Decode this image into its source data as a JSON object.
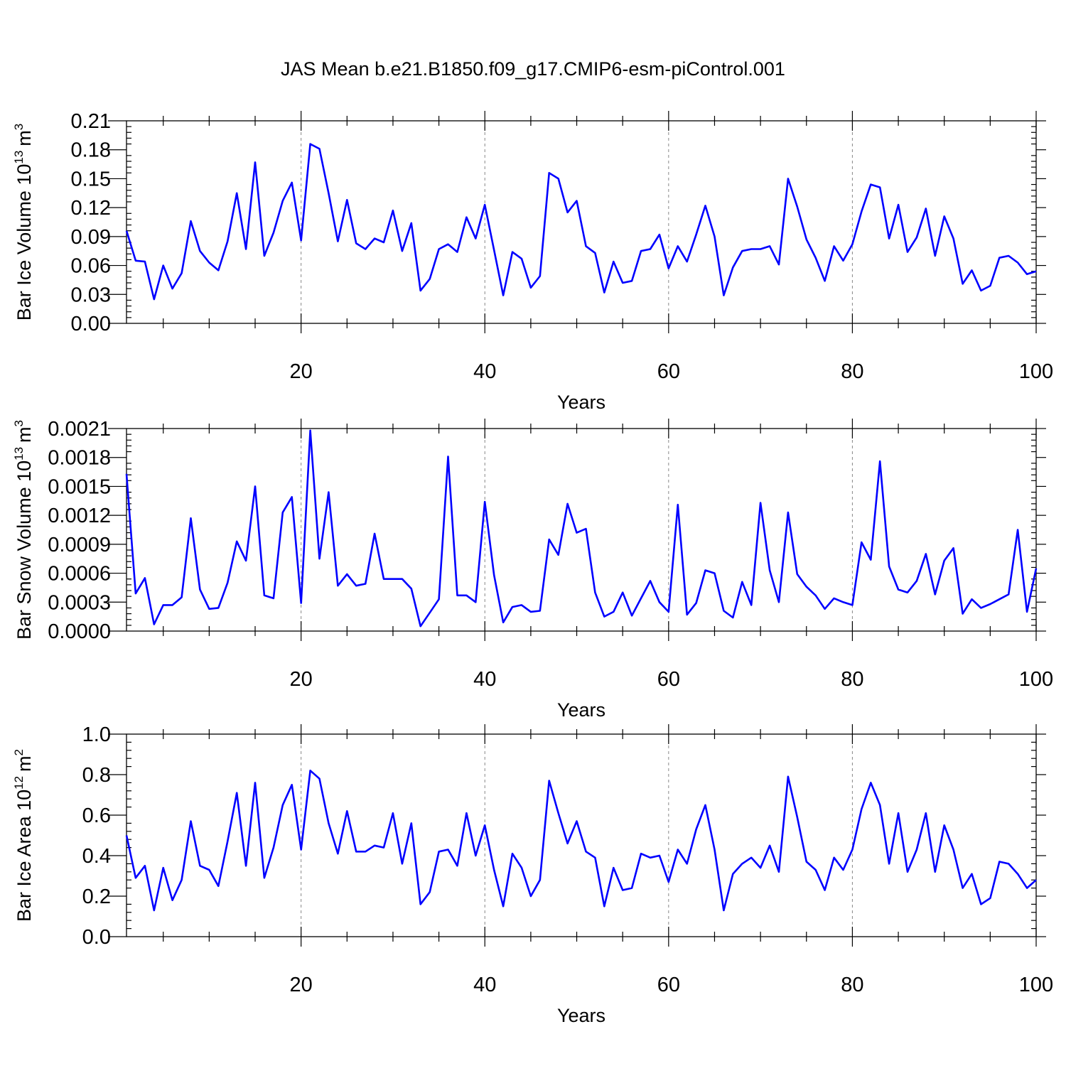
{
  "figure_title": "JAS Mean b.e21.B1850.f09_g17.CMIP6-esm-piControl.001",
  "line_color": "#0000ff",
  "chart_data": [
    {
      "type": "line",
      "xlabel": "Years",
      "ylabel": "Bar Ice Volume 10",
      "ylabel_exponent": "13",
      "ylabel_unit": "m",
      "ylabel_unit_exponent": "3",
      "xlim": [
        1,
        100
      ],
      "ylim": [
        0,
        0.21
      ],
      "x_ticks": [
        20,
        40,
        60,
        80,
        100
      ],
      "y_ticks": [
        "0.00",
        "0.03",
        "0.06",
        "0.09",
        "0.12",
        "0.15",
        "0.18",
        "0.21"
      ],
      "grid": "dashed vertical at x ticks",
      "x": [
        1,
        2,
        3,
        4,
        5,
        6,
        7,
        8,
        9,
        10,
        11,
        12,
        13,
        14,
        15,
        16,
        17,
        18,
        19,
        20,
        21,
        22,
        23,
        24,
        25,
        26,
        27,
        28,
        29,
        30,
        31,
        32,
        33,
        34,
        35,
        36,
        37,
        38,
        39,
        40,
        41,
        42,
        43,
        44,
        45,
        46,
        47,
        48,
        49,
        50,
        51,
        52,
        53,
        54,
        55,
        56,
        57,
        58,
        59,
        60,
        61,
        62,
        63,
        64,
        65,
        66,
        67,
        68,
        69,
        70,
        71,
        72,
        73,
        74,
        75,
        76,
        77,
        78,
        79,
        80,
        81,
        82,
        83,
        84,
        85,
        86,
        87,
        88,
        89,
        90,
        91,
        92,
        93,
        94,
        95,
        96,
        97,
        98,
        99,
        100
      ],
      "values": [
        0.096,
        0.065,
        0.064,
        0.025,
        0.06,
        0.036,
        0.052,
        0.106,
        0.075,
        0.063,
        0.055,
        0.085,
        0.135,
        0.077,
        0.167,
        0.07,
        0.094,
        0.127,
        0.146,
        0.086,
        0.186,
        0.181,
        0.135,
        0.085,
        0.128,
        0.083,
        0.077,
        0.088,
        0.084,
        0.117,
        0.075,
        0.104,
        0.034,
        0.046,
        0.077,
        0.082,
        0.074,
        0.11,
        0.088,
        0.123,
        0.076,
        0.029,
        0.074,
        0.067,
        0.037,
        0.049,
        0.156,
        0.15,
        0.115,
        0.127,
        0.08,
        0.073,
        0.032,
        0.064,
        0.042,
        0.044,
        0.075,
        0.077,
        0.092,
        0.057,
        0.08,
        0.064,
        0.092,
        0.122,
        0.09,
        0.029,
        0.058,
        0.075,
        0.077,
        0.077,
        0.08,
        0.061,
        0.15,
        0.121,
        0.087,
        0.068,
        0.044,
        0.08,
        0.065,
        0.082,
        0.116,
        0.144,
        0.141,
        0.088,
        0.123,
        0.074,
        0.089,
        0.119,
        0.07,
        0.111,
        0.088,
        0.041,
        0.055,
        0.034,
        0.039,
        0.068,
        0.07,
        0.063,
        0.051,
        0.054
      ]
    },
    {
      "type": "line",
      "xlabel": "Years",
      "ylabel": "Bar Snow Volume 10",
      "ylabel_exponent": "13",
      "ylabel_unit": "m",
      "ylabel_unit_exponent": "3",
      "xlim": [
        1,
        100
      ],
      "ylim": [
        0,
        0.0021
      ],
      "x_ticks": [
        20,
        40,
        60,
        80,
        100
      ],
      "y_ticks": [
        "0.0000",
        "0.0003",
        "0.0006",
        "0.0009",
        "0.0012",
        "0.0015",
        "0.0018",
        "0.0021"
      ],
      "grid": "dashed vertical at x ticks",
      "x": [
        1,
        2,
        3,
        4,
        5,
        6,
        7,
        8,
        9,
        10,
        11,
        12,
        13,
        14,
        15,
        16,
        17,
        18,
        19,
        20,
        21,
        22,
        23,
        24,
        25,
        26,
        27,
        28,
        29,
        30,
        31,
        32,
        33,
        34,
        35,
        36,
        37,
        38,
        39,
        40,
        41,
        42,
        43,
        44,
        45,
        46,
        47,
        48,
        49,
        50,
        51,
        52,
        53,
        54,
        55,
        56,
        57,
        58,
        59,
        60,
        61,
        62,
        63,
        64,
        65,
        66,
        67,
        68,
        69,
        70,
        71,
        72,
        73,
        74,
        75,
        76,
        77,
        78,
        79,
        80,
        81,
        82,
        83,
        84,
        85,
        86,
        87,
        88,
        89,
        90,
        91,
        92,
        93,
        94,
        95,
        96,
        97,
        98,
        99,
        100
      ],
      "values": [
        0.00163,
        0.00039,
        0.00055,
        7e-05,
        0.00027,
        0.00027,
        0.00035,
        0.00117,
        0.00043,
        0.00023,
        0.00024,
        0.0005,
        0.00093,
        0.00073,
        0.0015,
        0.00037,
        0.00034,
        0.00123,
        0.00139,
        0.00029,
        0.00208,
        0.00075,
        0.00144,
        0.00047,
        0.00059,
        0.00047,
        0.00049,
        0.00101,
        0.00054,
        0.00054,
        0.00054,
        0.00044,
        5e-05,
        0.00019,
        0.00033,
        0.00181,
        0.00037,
        0.00037,
        0.0003,
        0.00134,
        0.00058,
        9e-05,
        0.00025,
        0.00027,
        0.0002,
        0.00021,
        0.00095,
        0.00079,
        0.00132,
        0.00102,
        0.00106,
        0.0004,
        0.00015,
        0.0002,
        0.0004,
        0.00016,
        0.00034,
        0.00052,
        0.0003,
        0.0002,
        0.00131,
        0.00017,
        0.00029,
        0.00063,
        0.0006,
        0.00021,
        0.00014,
        0.00051,
        0.00027,
        0.00133,
        0.00063,
        0.0003,
        0.00123,
        0.00059,
        0.00046,
        0.00037,
        0.00023,
        0.00034,
        0.0003,
        0.00027,
        0.00092,
        0.00074,
        0.00176,
        0.00067,
        0.00043,
        0.0004,
        0.00052,
        0.0008,
        0.00038,
        0.00073,
        0.00086,
        0.00018,
        0.00033,
        0.00024,
        0.00028,
        0.00033,
        0.00038,
        0.00105,
        0.0002,
        0.00065
      ]
    },
    {
      "type": "line",
      "xlabel": "Years",
      "ylabel": "Bar Ice Area 10",
      "ylabel_exponent": "12",
      "ylabel_unit": "m",
      "ylabel_unit_exponent": "2",
      "xlim": [
        1,
        100
      ],
      "ylim": [
        0,
        1.0
      ],
      "x_ticks": [
        20,
        40,
        60,
        80,
        100
      ],
      "y_ticks": [
        "0.0",
        "0.2",
        "0.4",
        "0.6",
        "0.8",
        "1.0"
      ],
      "grid": "dashed vertical at x ticks",
      "x": [
        1,
        2,
        3,
        4,
        5,
        6,
        7,
        8,
        9,
        10,
        11,
        12,
        13,
        14,
        15,
        16,
        17,
        18,
        19,
        20,
        21,
        22,
        23,
        24,
        25,
        26,
        27,
        28,
        29,
        30,
        31,
        32,
        33,
        34,
        35,
        36,
        37,
        38,
        39,
        40,
        41,
        42,
        43,
        44,
        45,
        46,
        47,
        48,
        49,
        50,
        51,
        52,
        53,
        54,
        55,
        56,
        57,
        58,
        59,
        60,
        61,
        62,
        63,
        64,
        65,
        66,
        67,
        68,
        69,
        70,
        71,
        72,
        73,
        74,
        75,
        76,
        77,
        78,
        79,
        80,
        81,
        82,
        83,
        84,
        85,
        86,
        87,
        88,
        89,
        90,
        91,
        92,
        93,
        94,
        95,
        96,
        97,
        98,
        99,
        100
      ],
      "values": [
        0.5,
        0.29,
        0.35,
        0.13,
        0.34,
        0.18,
        0.28,
        0.57,
        0.35,
        0.33,
        0.25,
        0.47,
        0.71,
        0.35,
        0.76,
        0.29,
        0.44,
        0.65,
        0.75,
        0.43,
        0.82,
        0.78,
        0.56,
        0.41,
        0.62,
        0.42,
        0.42,
        0.45,
        0.44,
        0.61,
        0.36,
        0.56,
        0.16,
        0.22,
        0.42,
        0.43,
        0.35,
        0.61,
        0.4,
        0.55,
        0.33,
        0.15,
        0.41,
        0.34,
        0.2,
        0.28,
        0.77,
        0.61,
        0.46,
        0.57,
        0.42,
        0.39,
        0.15,
        0.34,
        0.23,
        0.24,
        0.41,
        0.39,
        0.4,
        0.27,
        0.43,
        0.36,
        0.53,
        0.65,
        0.43,
        0.13,
        0.31,
        0.36,
        0.39,
        0.34,
        0.45,
        0.32,
        0.79,
        0.59,
        0.37,
        0.33,
        0.23,
        0.39,
        0.33,
        0.43,
        0.63,
        0.76,
        0.65,
        0.36,
        0.61,
        0.32,
        0.43,
        0.61,
        0.32,
        0.55,
        0.43,
        0.24,
        0.31,
        0.16,
        0.19,
        0.37,
        0.36,
        0.31,
        0.24,
        0.28
      ]
    }
  ]
}
